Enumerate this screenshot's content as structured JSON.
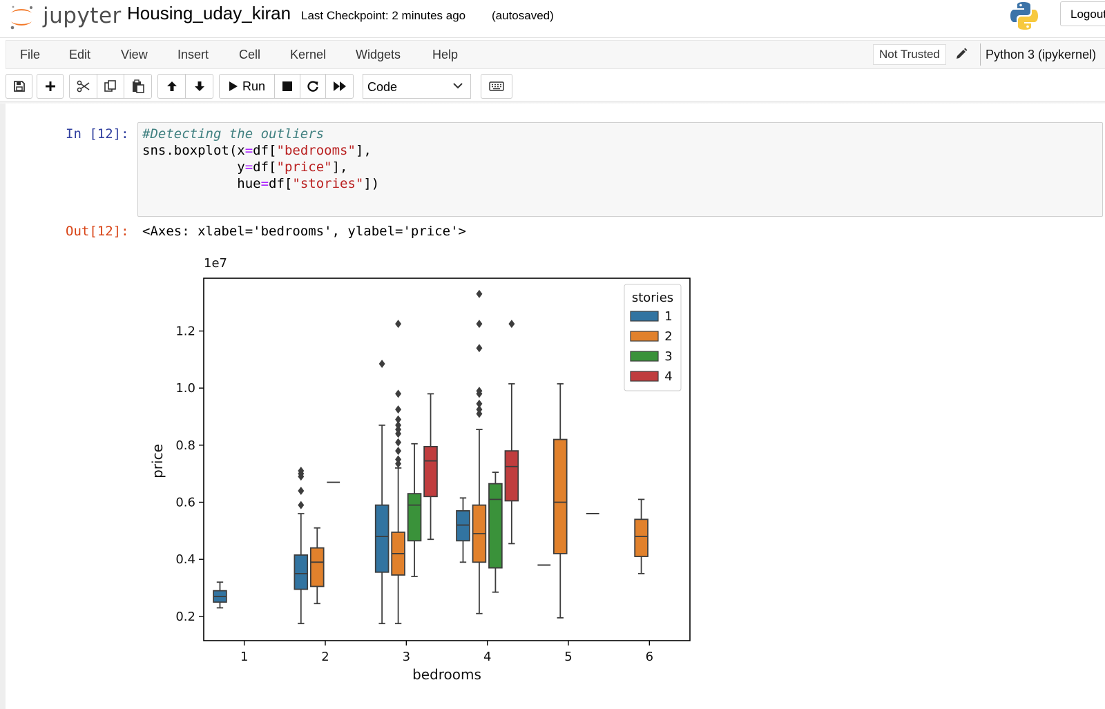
{
  "header": {
    "logo_text": "jupyter",
    "notebook_title": "Housing_uday_kiran",
    "checkpoint": "Last Checkpoint: 2 minutes ago",
    "autosave": "(autosaved)",
    "logout_label": "Logout"
  },
  "menubar": {
    "items": [
      "File",
      "Edit",
      "View",
      "Insert",
      "Cell",
      "Kernel",
      "Widgets",
      "Help"
    ],
    "trust_label": "Not Trusted",
    "kernel_name": "Python 3 (ipykernel)"
  },
  "toolbar": {
    "buttons": [
      "save-icon",
      "plus-icon",
      "cut-icon",
      "copy-icon",
      "paste-icon",
      "arrow-up-icon",
      "arrow-down-icon",
      "run-icon",
      "stop-icon",
      "restart-icon",
      "fast-forward-icon",
      "keyboard-icon"
    ],
    "run_label": "Run",
    "cell_type": "Code"
  },
  "cell": {
    "in_prompt": "In [12]:",
    "code_comment": "#Detecting the outliers",
    "out_prompt": "Out[12]:",
    "output_text": "<Axes: xlabel='bedrooms', ylabel='price'>"
  },
  "chart_data": {
    "type": "boxplot",
    "title": "",
    "xlabel": "bedrooms",
    "ylabel": "price",
    "y_offset_label": "1e7",
    "categories": [
      "1",
      "2",
      "3",
      "4",
      "5",
      "6"
    ],
    "yticks": [
      "0.2",
      "0.4",
      "0.6",
      "0.8",
      "1.0",
      "1.2"
    ],
    "ylim": [
      0.115,
      1.385
    ],
    "legend": {
      "title": "stories",
      "position": "top-right",
      "entries": [
        "1",
        "2",
        "3",
        "4"
      ]
    },
    "colors": {
      "1": "#3274a1",
      "2": "#e1812c",
      "3": "#3a923a",
      "4": "#c03d3e"
    },
    "series": [
      {
        "name": "1",
        "boxes": [
          {
            "bedrooms": "1",
            "whisker_low": 0.23,
            "q1": 0.25,
            "median": 0.27,
            "q3": 0.29,
            "whisker_high": 0.32,
            "outliers": []
          },
          {
            "bedrooms": "2",
            "whisker_low": 0.175,
            "q1": 0.295,
            "median": 0.35,
            "q3": 0.415,
            "whisker_high": 0.56,
            "outliers": [
              0.59,
              0.64,
              0.69,
              0.7,
              0.71
            ]
          },
          {
            "bedrooms": "3",
            "whisker_low": 0.175,
            "q1": 0.355,
            "median": 0.48,
            "q3": 0.59,
            "whisker_high": 0.87,
            "outliers": [
              1.085
            ]
          },
          {
            "bedrooms": "4",
            "whisker_low": 0.39,
            "q1": 0.465,
            "median": 0.52,
            "q3": 0.57,
            "whisker_high": 0.615,
            "outliers": []
          },
          {
            "bedrooms": "5",
            "whisker_low": 0.38,
            "q1": 0.38,
            "median": 0.38,
            "q3": 0.38,
            "whisker_high": 0.38,
            "outliers": []
          }
        ]
      },
      {
        "name": "2",
        "boxes": [
          {
            "bedrooms": "2",
            "whisker_low": 0.245,
            "q1": 0.305,
            "median": 0.39,
            "q3": 0.44,
            "whisker_high": 0.51,
            "outliers": []
          },
          {
            "bedrooms": "3",
            "whisker_low": 0.175,
            "q1": 0.345,
            "median": 0.42,
            "q3": 0.495,
            "whisker_high": 0.72,
            "outliers": [
              0.735,
              0.75,
              0.78,
              0.81,
              0.84,
              0.855,
              0.87,
              0.89,
              0.925,
              0.98,
              1.225
            ]
          },
          {
            "bedrooms": "4",
            "whisker_low": 0.21,
            "q1": 0.39,
            "median": 0.49,
            "q3": 0.59,
            "whisker_high": 0.855,
            "outliers": [
              0.91,
              0.925,
              0.945,
              0.98,
              0.99,
              1.14,
              1.225,
              1.33
            ]
          },
          {
            "bedrooms": "5",
            "whisker_low": 0.195,
            "q1": 0.42,
            "median": 0.6,
            "q3": 0.82,
            "whisker_high": 1.015,
            "outliers": []
          },
          {
            "bedrooms": "6",
            "whisker_low": 0.35,
            "q1": 0.41,
            "median": 0.48,
            "q3": 0.54,
            "whisker_high": 0.61,
            "outliers": []
          }
        ]
      },
      {
        "name": "3",
        "boxes": [
          {
            "bedrooms": "2",
            "whisker_low": 0.67,
            "q1": 0.67,
            "median": 0.67,
            "q3": 0.67,
            "whisker_high": 0.67,
            "outliers": []
          },
          {
            "bedrooms": "3",
            "whisker_low": 0.34,
            "q1": 0.465,
            "median": 0.59,
            "q3": 0.63,
            "whisker_high": 0.805,
            "outliers": []
          },
          {
            "bedrooms": "4",
            "whisker_low": 0.285,
            "q1": 0.37,
            "median": 0.61,
            "q3": 0.665,
            "whisker_high": 0.705,
            "outliers": []
          }
        ]
      },
      {
        "name": "4",
        "boxes": [
          {
            "bedrooms": "3",
            "whisker_low": 0.47,
            "q1": 0.62,
            "median": 0.745,
            "q3": 0.795,
            "whisker_high": 0.98,
            "outliers": []
          },
          {
            "bedrooms": "4",
            "whisker_low": 0.455,
            "q1": 0.605,
            "median": 0.725,
            "q3": 0.78,
            "whisker_high": 1.015,
            "outliers": [
              1.225
            ]
          },
          {
            "bedrooms": "5",
            "whisker_low": 0.56,
            "q1": 0.56,
            "median": 0.56,
            "q3": 0.56,
            "whisker_high": 0.56,
            "outliers": []
          }
        ]
      }
    ]
  }
}
